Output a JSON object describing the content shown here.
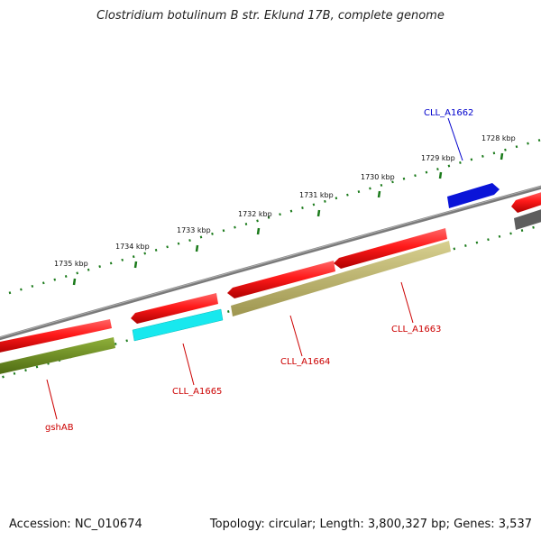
{
  "title": "Clostridium botulinum B str. Eklund 17B, complete genome",
  "footer": {
    "accession": "Accession: NC_010674",
    "summary": "Topology: circular; Length: 3,800,327 bp; Genes: 3,537"
  },
  "colors": {
    "backbone": "#888888",
    "cds_forward": "#ff1a1a",
    "cds_reverse": "#ff1a1a",
    "highlight_blue": "#0a14d8",
    "highlight_cyan": "#18e8ee",
    "olive_dark": "#6a8a20",
    "olive_light": "#bdb46a",
    "gray_gene": "#666666",
    "tick": "#1a7a1a",
    "label_red": "#cc0000",
    "label_blue": "#0000cc"
  },
  "scale": {
    "ticks": [
      {
        "label": "1728 kbp"
      },
      {
        "label": "1729 kbp"
      },
      {
        "label": "1730 kbp"
      },
      {
        "label": "1731 kbp"
      },
      {
        "label": "1732 kbp"
      },
      {
        "label": "1733 kbp"
      },
      {
        "label": "1734 kbp"
      },
      {
        "label": "1735 kbp"
      }
    ]
  },
  "gene_labels": [
    {
      "id": "CLL_A1662",
      "text": "CLL_A1662",
      "color": "#0000cc"
    },
    {
      "id": "CLL_A1663",
      "text": "CLL_A1663",
      "color": "#cc0000"
    },
    {
      "id": "CLL_A1664",
      "text": "CLL_A1664",
      "color": "#cc0000"
    },
    {
      "id": "CLL_A1665",
      "text": "CLL_A1665",
      "color": "#cc0000"
    },
    {
      "id": "gshAB",
      "text": "gshAB",
      "color": "#cc0000"
    }
  ]
}
